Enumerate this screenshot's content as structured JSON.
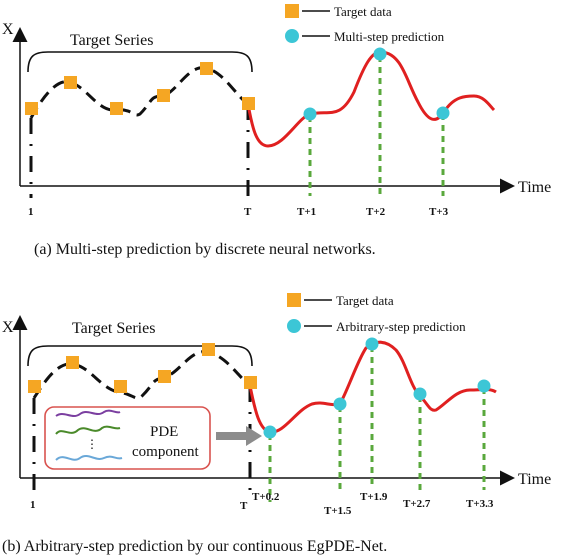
{
  "panel_a": {
    "axis_y_label": "X",
    "axis_x_label": "Time",
    "bracket_label": "Target Series",
    "legend_target": "Target data",
    "legend_prediction": "Multi-step prediction",
    "ticks": [
      "1",
      "T",
      "T+1",
      "T+2",
      "T+3"
    ],
    "caption": "(a)  Multi-step prediction by discrete neural networks."
  },
  "panel_b": {
    "axis_y_label": "X",
    "axis_x_label": "Time",
    "bracket_label": "Target Series",
    "legend_target": "Target data",
    "legend_prediction": "Arbitrary-step prediction",
    "component_label_1": "PDE",
    "component_label_2": "component",
    "ticks": [
      "1",
      "T",
      "T+0.2",
      "T+1.5",
      "T+1.9",
      "T+2.7",
      "T+3.3"
    ],
    "caption": "(b)  Arbitrary-step prediction by our continuous EgPDE-Net."
  },
  "colors": {
    "target_marker": "#f5a623",
    "prediction_marker": "#3cc6d6",
    "prediction_curve": "#e02020",
    "guide_line": "#5aa83c",
    "component_border": "#d9534f"
  }
}
